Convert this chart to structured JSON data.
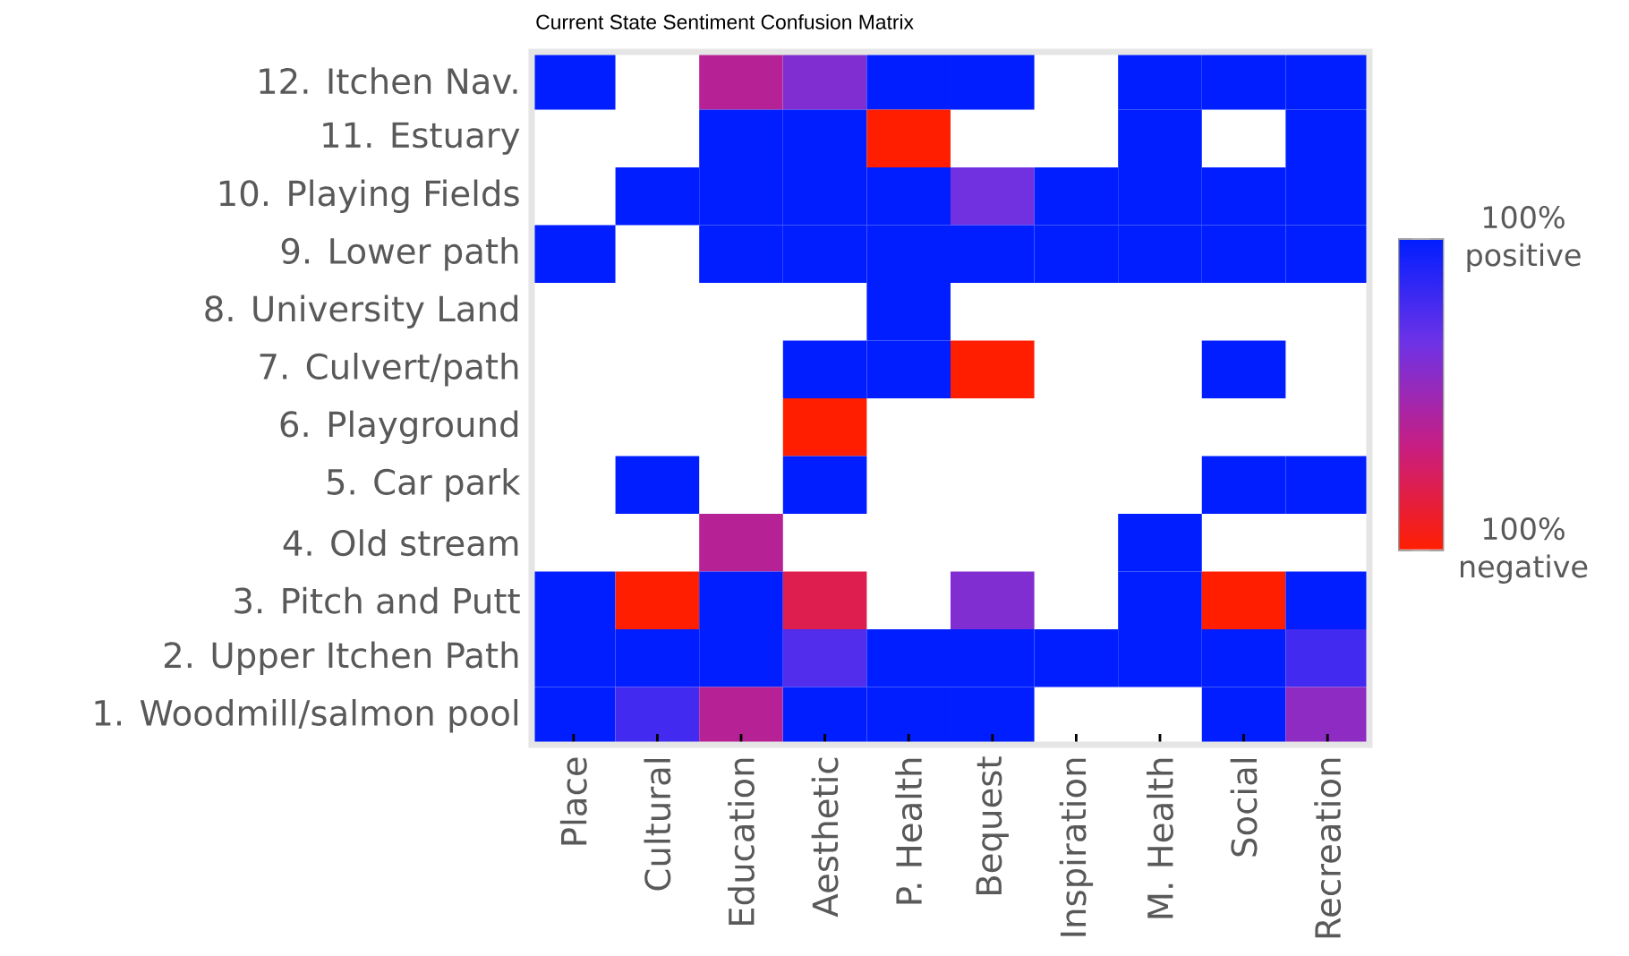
{
  "chart_data": {
    "type": "heatmap",
    "title": "Current State Sentiment Confusion Matrix",
    "categories": [
      "Place",
      "Cultural",
      "Education",
      "Aesthetic",
      "P. Health",
      "Bequest",
      "Inspiration",
      "M. Health",
      "Social",
      "Recreation"
    ],
    "y_categories": [
      "12. Itchen Nav.",
      "11. Estuary",
      "10. Playing Fields",
      "9. Lower path",
      "8. University Land",
      "7. Culvert/path",
      "6. Playground",
      "5. Car park",
      "4. Old stream",
      "3. Pitch and Putt",
      "2. Upper Itchen Path",
      "1. Woodmill/salmon pool"
    ],
    "cells": [
      [
        100,
        null,
        -20,
        20,
        100,
        100,
        null,
        100,
        100,
        100
      ],
      [
        null,
        null,
        100,
        100,
        -100,
        null,
        null,
        100,
        null,
        100
      ],
      [
        null,
        100,
        100,
        100,
        100,
        30,
        100,
        100,
        100,
        100
      ],
      [
        100,
        null,
        100,
        100,
        100,
        100,
        100,
        100,
        100,
        100
      ],
      [
        null,
        null,
        null,
        null,
        100,
        null,
        null,
        null,
        null,
        null
      ],
      [
        null,
        null,
        null,
        100,
        100,
        -100,
        null,
        null,
        100,
        null
      ],
      [
        null,
        null,
        null,
        -100,
        null,
        null,
        null,
        null,
        null,
        null
      ],
      [
        null,
        100,
        null,
        100,
        null,
        null,
        null,
        null,
        100,
        100
      ],
      [
        null,
        null,
        -20,
        null,
        null,
        null,
        null,
        100,
        null,
        null
      ],
      [
        100,
        -100,
        100,
        -60,
        null,
        20,
        null,
        100,
        -100,
        100
      ],
      [
        100,
        100,
        100,
        50,
        100,
        100,
        100,
        100,
        100,
        60
      ],
      [
        100,
        60,
        -20,
        100,
        100,
        100,
        null,
        null,
        100,
        10
      ]
    ],
    "clim": [
      -100,
      100
    ],
    "cticks": [
      {
        "value": 100,
        "label": "100% positive"
      },
      {
        "value": -100,
        "label": "100% negative"
      }
    ]
  }
}
